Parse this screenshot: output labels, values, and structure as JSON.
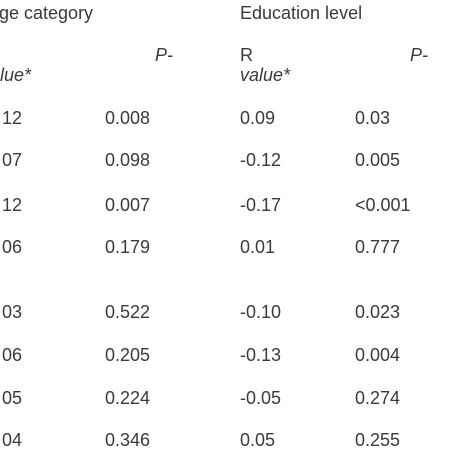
{
  "header": {
    "group_left": "ge category",
    "group_right": "Education level",
    "left_p": "P-",
    "left_value": "lue*",
    "right_r": "R",
    "right_p": "P-",
    "right_value": "value*"
  },
  "table": {
    "rows": [
      [
        "12",
        "0.008",
        "0.09",
        "0.03"
      ],
      [
        "07",
        "0.098",
        "-0.12",
        "0.005"
      ],
      [
        "12",
        "0.007",
        "-0.17",
        "<0.001"
      ],
      [
        "06",
        "0.179",
        "0.01",
        "0.777"
      ],
      [
        "03",
        "0.522",
        "-0.10",
        "0.023"
      ],
      [
        "06",
        "0.205",
        "-0.13",
        "0.004"
      ],
      [
        "05",
        "0.224",
        "-0.05",
        "0.274"
      ],
      [
        "04",
        "0.346",
        "0.05",
        "0.255"
      ]
    ]
  }
}
